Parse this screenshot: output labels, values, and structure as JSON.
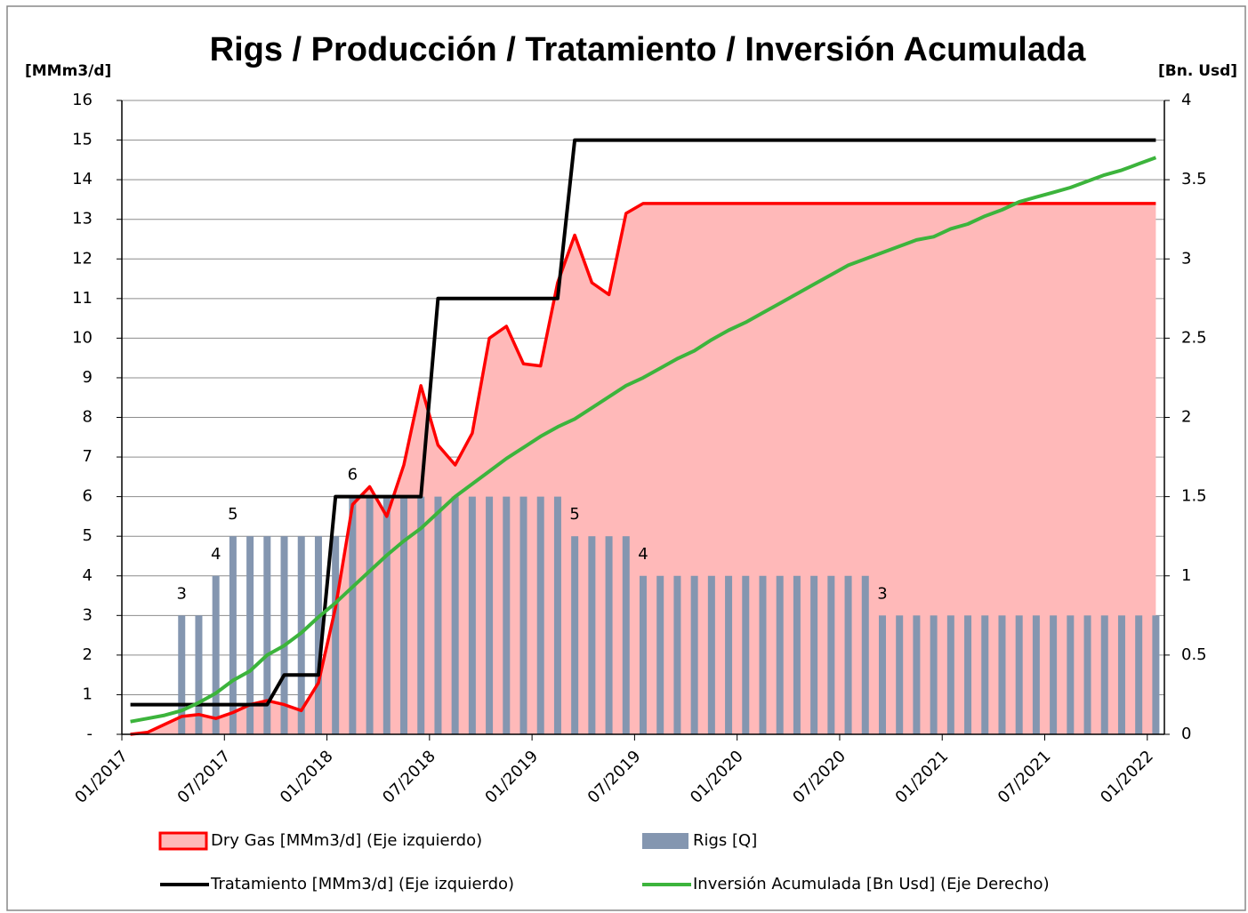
{
  "chart_data": {
    "type": "combo",
    "title": "Rigs / Producción / Tratamiento / Inversión Acumulada",
    "y_label": "[MMm3/d]",
    "y2_label": "[Bn. Usd]",
    "categories": [
      "01/2017",
      null,
      null,
      null,
      null,
      null,
      "07/2017",
      null,
      null,
      null,
      null,
      null,
      "01/2018",
      null,
      null,
      null,
      null,
      null,
      "07/2018",
      null,
      null,
      null,
      null,
      null,
      "01/2019",
      null,
      null,
      null,
      null,
      null,
      "07/2019",
      null,
      null,
      null,
      null,
      null,
      "01/2020",
      null,
      null,
      null,
      null,
      null,
      "07/2020",
      null,
      null,
      null,
      null,
      null,
      "01/2021",
      null,
      null,
      null,
      null,
      null,
      "07/2021",
      null,
      null,
      null,
      null,
      null,
      "01/2022"
    ],
    "ylim": [
      0,
      16
    ],
    "yticks": [
      {
        "value": 0,
        "label": "-"
      },
      1,
      2,
      3,
      4,
      5,
      6,
      7,
      8,
      9,
      10,
      11,
      12,
      13,
      14,
      15,
      16
    ],
    "y2lim": [
      0,
      4
    ],
    "y2ticks": [
      0,
      0.5,
      1,
      1.5,
      2,
      2.5,
      3,
      3.5,
      4
    ],
    "grid": true,
    "legend": "bottom",
    "series": [
      {
        "name": "Dry Gas [MMm3/d] (Eje izquierdo)",
        "type": "area",
        "color": "#ff0000",
        "fill": "#ffb9b9",
        "values": [
          0,
          0.05,
          0.25,
          0.45,
          0.5,
          0.4,
          0.55,
          0.75,
          0.85,
          0.75,
          0.6,
          1.3,
          3.2,
          5.8,
          6.25,
          5.5,
          6.8,
          8.8,
          7.3,
          6.8,
          7.6,
          10,
          10.3,
          9.35,
          9.3,
          11.4,
          12.6,
          11.4,
          11.1,
          13.15,
          13.4,
          13.4,
          13.4,
          13.4,
          13.4,
          13.4,
          13.4,
          13.4,
          13.4,
          13.4,
          13.4,
          13.4,
          13.4,
          13.4,
          13.4,
          13.4,
          13.4,
          13.4,
          13.4,
          13.4,
          13.4,
          13.4,
          13.4,
          13.4,
          13.4,
          13.4,
          13.4,
          13.4,
          13.4,
          13.4,
          13.4
        ]
      },
      {
        "name": "Rigs [Q]",
        "type": "bar",
        "color": "#8496b0",
        "values": [
          null,
          null,
          null,
          3,
          3,
          4,
          5,
          5,
          5,
          5,
          5,
          5,
          5,
          6,
          6,
          6,
          6,
          6,
          6,
          6,
          6,
          6,
          6,
          6,
          6,
          6,
          5,
          5,
          5,
          5,
          4,
          4,
          4,
          4,
          4,
          4,
          4,
          4,
          4,
          4,
          4,
          4,
          4,
          4,
          3,
          3,
          3,
          3,
          3,
          3,
          3,
          3,
          3,
          3,
          3,
          3,
          3,
          3,
          3,
          3,
          3
        ],
        "value_labels": [
          null,
          null,
          null,
          "3",
          null,
          "4",
          "5",
          null,
          null,
          null,
          null,
          null,
          null,
          "6",
          null,
          null,
          null,
          null,
          null,
          null,
          null,
          null,
          null,
          null,
          null,
          null,
          "5",
          null,
          null,
          null,
          "4",
          null,
          null,
          null,
          null,
          null,
          null,
          null,
          null,
          null,
          null,
          null,
          null,
          null,
          "3",
          null,
          null,
          null,
          null,
          null,
          null,
          null,
          null,
          null,
          null,
          null,
          null,
          null,
          null,
          null,
          null
        ]
      },
      {
        "name": "Tratamiento [MMm3/d] (Eje izquierdo)",
        "type": "line",
        "color": "#000000",
        "values": [
          0.75,
          0.75,
          0.75,
          0.75,
          0.75,
          0.75,
          0.75,
          0.75,
          0.75,
          1.5,
          1.5,
          1.5,
          6,
          6,
          6,
          6,
          6,
          6,
          11,
          11,
          11,
          11,
          11,
          11,
          11,
          11,
          15,
          15,
          15,
          15,
          15,
          15,
          15,
          15,
          15,
          15,
          15,
          15,
          15,
          15,
          15,
          15,
          15,
          15,
          15,
          15,
          15,
          15,
          15,
          15,
          15,
          15,
          15,
          15,
          15,
          15,
          15,
          15,
          15,
          15,
          15
        ]
      },
      {
        "name": "Inversión Acumulada [Bn Usd] (Eje Derecho)",
        "type": "line",
        "axis": "y2",
        "color": "#3cb43c",
        "values": [
          0.08,
          0.1,
          0.12,
          0.15,
          0.2,
          0.26,
          0.34,
          0.4,
          0.5,
          0.56,
          0.64,
          0.74,
          0.83,
          0.93,
          1.03,
          1.13,
          1.22,
          1.3,
          1.4,
          1.5,
          1.58,
          1.66,
          1.74,
          1.81,
          1.88,
          1.94,
          1.99,
          2.06,
          2.13,
          2.2,
          2.25,
          2.31,
          2.37,
          2.42,
          2.49,
          2.55,
          2.6,
          2.66,
          2.72,
          2.78,
          2.84,
          2.9,
          2.96,
          3,
          3.04,
          3.08,
          3.12,
          3.14,
          3.19,
          3.22,
          3.27,
          3.31,
          3.36,
          3.39,
          3.42,
          3.45,
          3.49,
          3.53,
          3.56,
          3.6,
          3.64
        ]
      }
    ]
  }
}
